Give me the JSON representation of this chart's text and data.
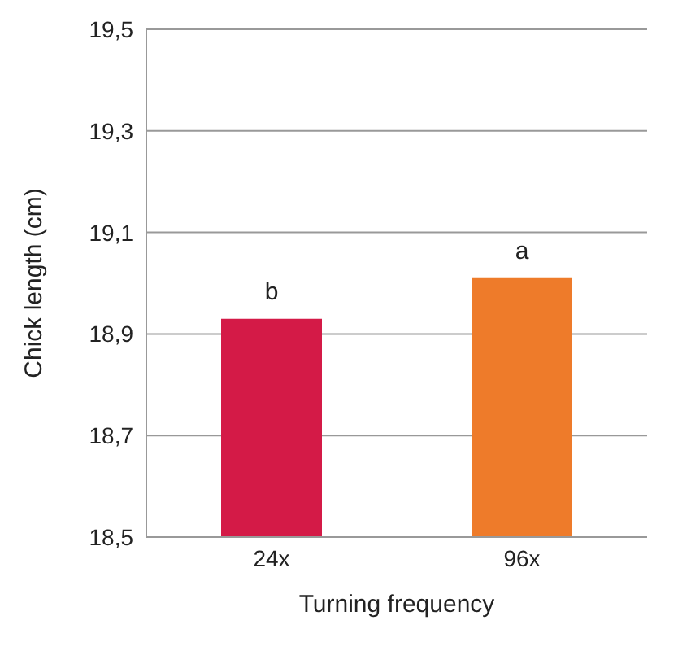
{
  "chart_data": {
    "type": "bar",
    "xlabel": "Turning frequency",
    "ylabel": "Chick length (cm)",
    "categories": [
      "24x",
      "96x"
    ],
    "values": [
      18.93,
      19.01
    ],
    "colors": [
      "#d41a47",
      "#ee7b2a"
    ],
    "ylim": [
      18.5,
      19.5
    ],
    "yticks": [
      {
        "value": 18.5,
        "label": "18,5"
      },
      {
        "value": 18.7,
        "label": "18,7"
      },
      {
        "value": 18.9,
        "label": "18,9"
      },
      {
        "value": 19.1,
        "label": "19,1"
      },
      {
        "value": 19.3,
        "label": "19,3"
      },
      {
        "value": 19.5,
        "label": "19,5"
      }
    ],
    "grid": "y",
    "annotations": [
      {
        "text": "b",
        "x": "24x",
        "y": 18.93
      },
      {
        "text": "a",
        "x": "96x",
        "y": 19.01
      }
    ]
  }
}
